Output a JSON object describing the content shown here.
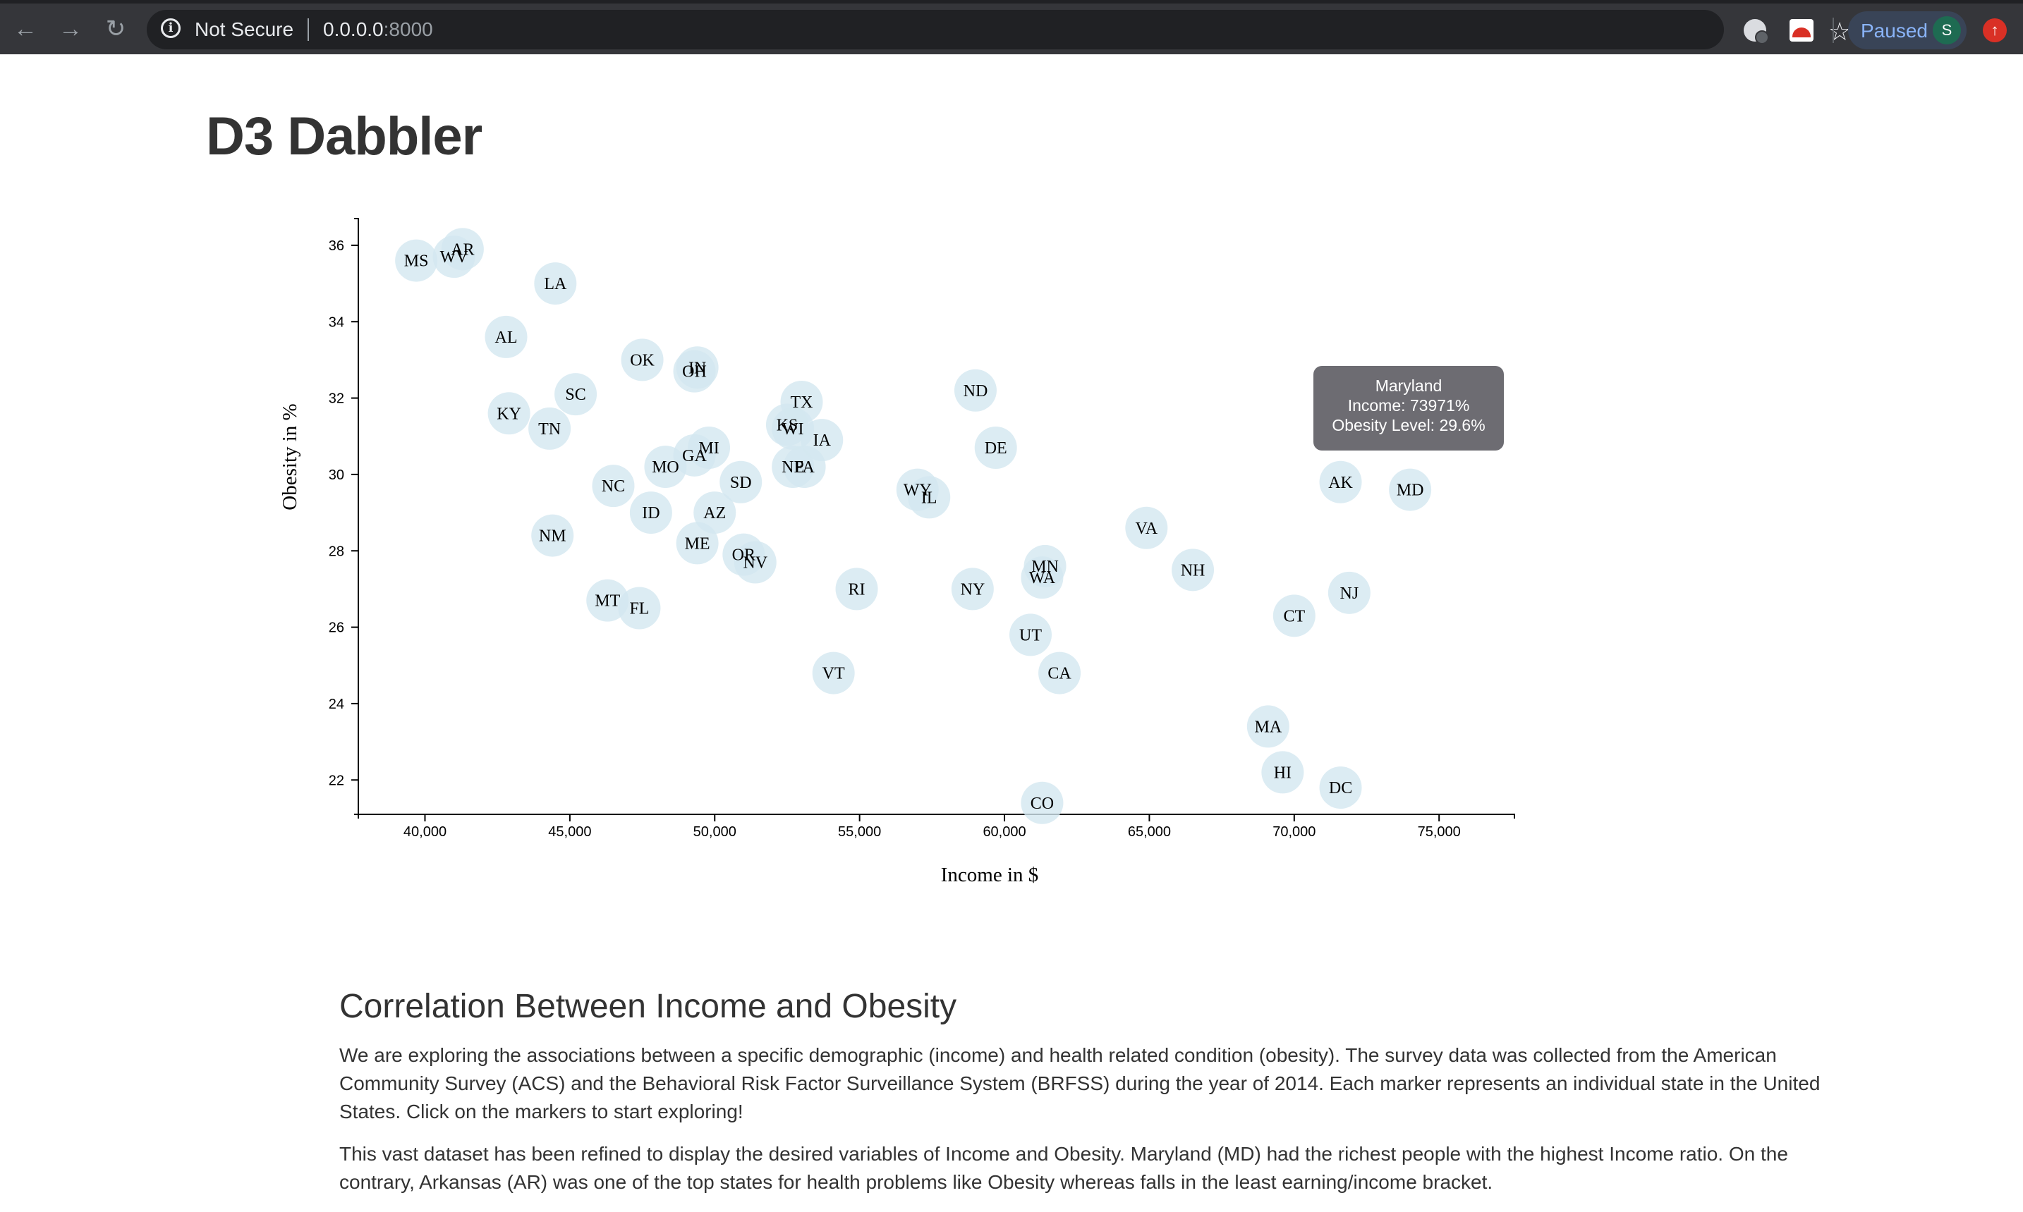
{
  "browser": {
    "back_icon": "back-arrow-icon",
    "forward_icon": "forward-arrow-icon",
    "reload_icon": "reload-icon",
    "security_label": "Not Secure",
    "url_host": "0.0.0.0",
    "url_port": ":8000",
    "profile_status": "Paused",
    "profile_initial": "S"
  },
  "page": {
    "title": "D3 Dabbler",
    "section_heading": "Correlation Between Income and Obesity",
    "paragraphs": [
      "We are exploring the associations between a specific demographic (income) and health related condition (obesity). The survey data was collected from the American Community Survey (ACS) and the Behavioral Risk Factor Surveillance System (BRFSS) during the year of 2014. Each marker represents an individual state in the United States. Click on the markers to start exploring!",
      "This vast dataset has been refined to display the desired variables of Income and Obesity. Maryland (MD) had the richest people with the highest Income ratio. On the contrary, Arkansas (AR) was one of the top states for health problems like Obesity whereas falls in the least earning/income bracket."
    ]
  },
  "tooltip": {
    "state": "Maryland",
    "income_line": "Income: 73971%",
    "obesity_line": "Obesity Level: 29.6%"
  },
  "chart_data": {
    "type": "scatter",
    "xlabel": "Income in $",
    "ylabel": "Obesity in %",
    "xlim": [
      37700,
      77600
    ],
    "ylim": [
      21.1,
      36.7
    ],
    "xticks": [
      40000,
      45000,
      50000,
      55000,
      60000,
      65000,
      70000,
      75000
    ],
    "xtick_labels": [
      "40,000",
      "45,000",
      "50,000",
      "55,000",
      "60,000",
      "65,000",
      "70,000",
      "75,000"
    ],
    "yticks": [
      22,
      24,
      26,
      28,
      30,
      32,
      34,
      36
    ],
    "ytick_labels": [
      "22",
      "24",
      "26",
      "28",
      "30",
      "32",
      "34",
      "36"
    ],
    "marker_color": "#d3e7f0",
    "points": [
      {
        "abbr": "MS",
        "x": 39700,
        "y": 35.6
      },
      {
        "abbr": "WV",
        "x": 41000,
        "y": 35.7
      },
      {
        "abbr": "AR",
        "x": 41300,
        "y": 35.9
      },
      {
        "abbr": "LA",
        "x": 44500,
        "y": 35.0
      },
      {
        "abbr": "AL",
        "x": 42800,
        "y": 33.6
      },
      {
        "abbr": "OK",
        "x": 47500,
        "y": 33.0
      },
      {
        "abbr": "IN",
        "x": 49400,
        "y": 32.8
      },
      {
        "abbr": "OH",
        "x": 49300,
        "y": 32.7
      },
      {
        "abbr": "SC",
        "x": 45200,
        "y": 32.1
      },
      {
        "abbr": "KY",
        "x": 42900,
        "y": 31.6
      },
      {
        "abbr": "TN",
        "x": 44300,
        "y": 31.2
      },
      {
        "abbr": "TX",
        "x": 53000,
        "y": 31.9
      },
      {
        "abbr": "KS",
        "x": 52500,
        "y": 31.3
      },
      {
        "abbr": "WI",
        "x": 52700,
        "y": 31.2
      },
      {
        "abbr": "IA",
        "x": 53700,
        "y": 30.9
      },
      {
        "abbr": "NE",
        "x": 52700,
        "y": 30.2
      },
      {
        "abbr": "PA",
        "x": 53100,
        "y": 30.2
      },
      {
        "abbr": "ND",
        "x": 59000,
        "y": 32.2
      },
      {
        "abbr": "DE",
        "x": 59700,
        "y": 30.7
      },
      {
        "abbr": "MI",
        "x": 49800,
        "y": 30.7
      },
      {
        "abbr": "GA",
        "x": 49300,
        "y": 30.5
      },
      {
        "abbr": "MO",
        "x": 48300,
        "y": 30.2
      },
      {
        "abbr": "SD",
        "x": 50900,
        "y": 29.8
      },
      {
        "abbr": "NC",
        "x": 46500,
        "y": 29.7
      },
      {
        "abbr": "ID",
        "x": 47800,
        "y": 29.0
      },
      {
        "abbr": "AZ",
        "x": 50000,
        "y": 29.0
      },
      {
        "abbr": "NM",
        "x": 44400,
        "y": 28.4
      },
      {
        "abbr": "ME",
        "x": 49400,
        "y": 28.2
      },
      {
        "abbr": "OR",
        "x": 51000,
        "y": 27.9
      },
      {
        "abbr": "NV",
        "x": 51400,
        "y": 27.7
      },
      {
        "abbr": "WY",
        "x": 57000,
        "y": 29.6
      },
      {
        "abbr": "IL",
        "x": 57400,
        "y": 29.4
      },
      {
        "abbr": "MT",
        "x": 46300,
        "y": 26.7
      },
      {
        "abbr": "FL",
        "x": 47400,
        "y": 26.5
      },
      {
        "abbr": "RI",
        "x": 54900,
        "y": 27.0
      },
      {
        "abbr": "NY",
        "x": 58900,
        "y": 27.0
      },
      {
        "abbr": "MN",
        "x": 61400,
        "y": 27.6
      },
      {
        "abbr": "WA",
        "x": 61300,
        "y": 27.3
      },
      {
        "abbr": "VA",
        "x": 64900,
        "y": 28.6
      },
      {
        "abbr": "NH",
        "x": 66500,
        "y": 27.5
      },
      {
        "abbr": "VT",
        "x": 54100,
        "y": 24.8
      },
      {
        "abbr": "UT",
        "x": 60900,
        "y": 25.8
      },
      {
        "abbr": "CA",
        "x": 61900,
        "y": 24.8
      },
      {
        "abbr": "AK",
        "x": 71600,
        "y": 29.8
      },
      {
        "abbr": "MD",
        "x": 74000,
        "y": 29.6
      },
      {
        "abbr": "NJ",
        "x": 71900,
        "y": 26.9
      },
      {
        "abbr": "CT",
        "x": 70000,
        "y": 26.3
      },
      {
        "abbr": "MA",
        "x": 69100,
        "y": 23.4
      },
      {
        "abbr": "HI",
        "x": 69600,
        "y": 22.2
      },
      {
        "abbr": "DC",
        "x": 71600,
        "y": 21.8
      },
      {
        "abbr": "CO",
        "x": 61300,
        "y": 21.4
      }
    ]
  }
}
